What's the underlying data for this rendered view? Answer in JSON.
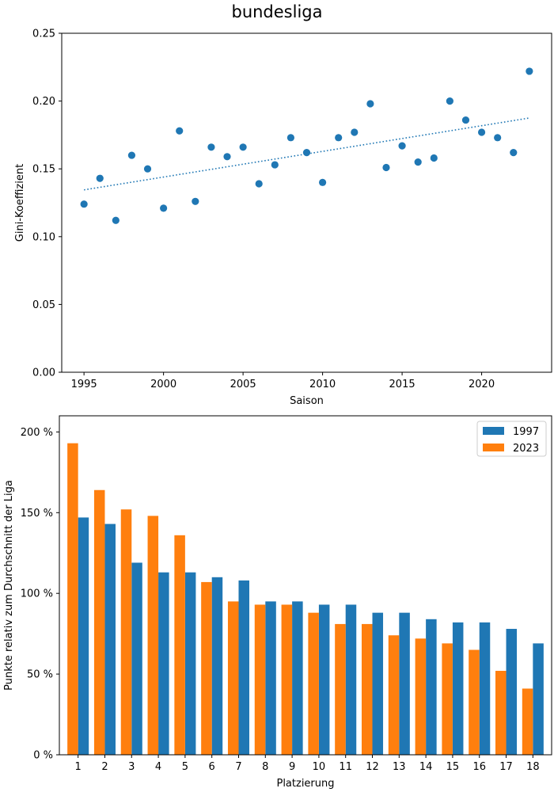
{
  "figure_title": "bundesliga",
  "chart_data": [
    {
      "type": "scatter",
      "title": "",
      "xlabel": "Saison",
      "ylabel": "Gini-Koeffizient",
      "xlim": [
        1993.6,
        2024.4
      ],
      "ylim": [
        0,
        0.25
      ],
      "xticks": [
        1995,
        2000,
        2005,
        2010,
        2015,
        2020
      ],
      "xtick_labels": [
        "1995",
        "2000",
        "2005",
        "2010",
        "2015",
        "2020"
      ],
      "yticks": [
        0,
        0.05,
        0.1,
        0.15,
        0.2,
        0.25
      ],
      "ytick_labels": [
        "0.00",
        "0.05",
        "0.10",
        "0.15",
        "0.20",
        "0.25"
      ],
      "color": "#1f77b4",
      "points": [
        {
          "x": 1995,
          "y": 0.124
        },
        {
          "x": 1996,
          "y": 0.143
        },
        {
          "x": 1997,
          "y": 0.112
        },
        {
          "x": 1998,
          "y": 0.16
        },
        {
          "x": 1999,
          "y": 0.15
        },
        {
          "x": 2000,
          "y": 0.121
        },
        {
          "x": 2001,
          "y": 0.178
        },
        {
          "x": 2002,
          "y": 0.126
        },
        {
          "x": 2003,
          "y": 0.166
        },
        {
          "x": 2004,
          "y": 0.159
        },
        {
          "x": 2005,
          "y": 0.166
        },
        {
          "x": 2006,
          "y": 0.139
        },
        {
          "x": 2007,
          "y": 0.153
        },
        {
          "x": 2008,
          "y": 0.173
        },
        {
          "x": 2009,
          "y": 0.162
        },
        {
          "x": 2010,
          "y": 0.14
        },
        {
          "x": 2011,
          "y": 0.173
        },
        {
          "x": 2012,
          "y": 0.177
        },
        {
          "x": 2013,
          "y": 0.198
        },
        {
          "x": 2014,
          "y": 0.151
        },
        {
          "x": 2015,
          "y": 0.167
        },
        {
          "x": 2016,
          "y": 0.155
        },
        {
          "x": 2017,
          "y": 0.158
        },
        {
          "x": 2018,
          "y": 0.2
        },
        {
          "x": 2019,
          "y": 0.186
        },
        {
          "x": 2020,
          "y": 0.177
        },
        {
          "x": 2021,
          "y": 0.173
        },
        {
          "x": 2022,
          "y": 0.162
        },
        {
          "x": 2023,
          "y": 0.222
        }
      ],
      "trendline": {
        "style": "dotted",
        "x": [
          1995,
          2023
        ],
        "y": [
          0.1345,
          0.1875
        ]
      }
    },
    {
      "type": "bar",
      "title": "",
      "xlabel": "Platzierung",
      "ylabel": "Punkte relativ zum Durchschnitt der Liga",
      "ylim": [
        0,
        210
      ],
      "yticks": [
        0,
        50,
        100,
        150,
        200
      ],
      "ytick_labels": [
        "0 %",
        "50 %",
        "100 %",
        "150 %",
        "200 %"
      ],
      "categories": [
        "1",
        "2",
        "3",
        "4",
        "5",
        "6",
        "7",
        "8",
        "9",
        "10",
        "11",
        "12",
        "13",
        "14",
        "15",
        "16",
        "17",
        "18"
      ],
      "legend_position": "top-right",
      "series": [
        {
          "name": "1997",
          "color": "#1f77b4",
          "values": [
            147,
            143,
            119,
            113,
            113,
            110,
            108,
            95,
            95,
            93,
            93,
            88,
            88,
            84,
            82,
            82,
            78,
            69
          ]
        },
        {
          "name": "2023",
          "color": "#ff7f0e",
          "values": [
            193,
            164,
            152,
            148,
            136,
            107,
            95,
            93,
            93,
            88,
            81,
            81,
            74,
            72,
            69,
            65,
            52,
            41
          ]
        }
      ]
    }
  ]
}
